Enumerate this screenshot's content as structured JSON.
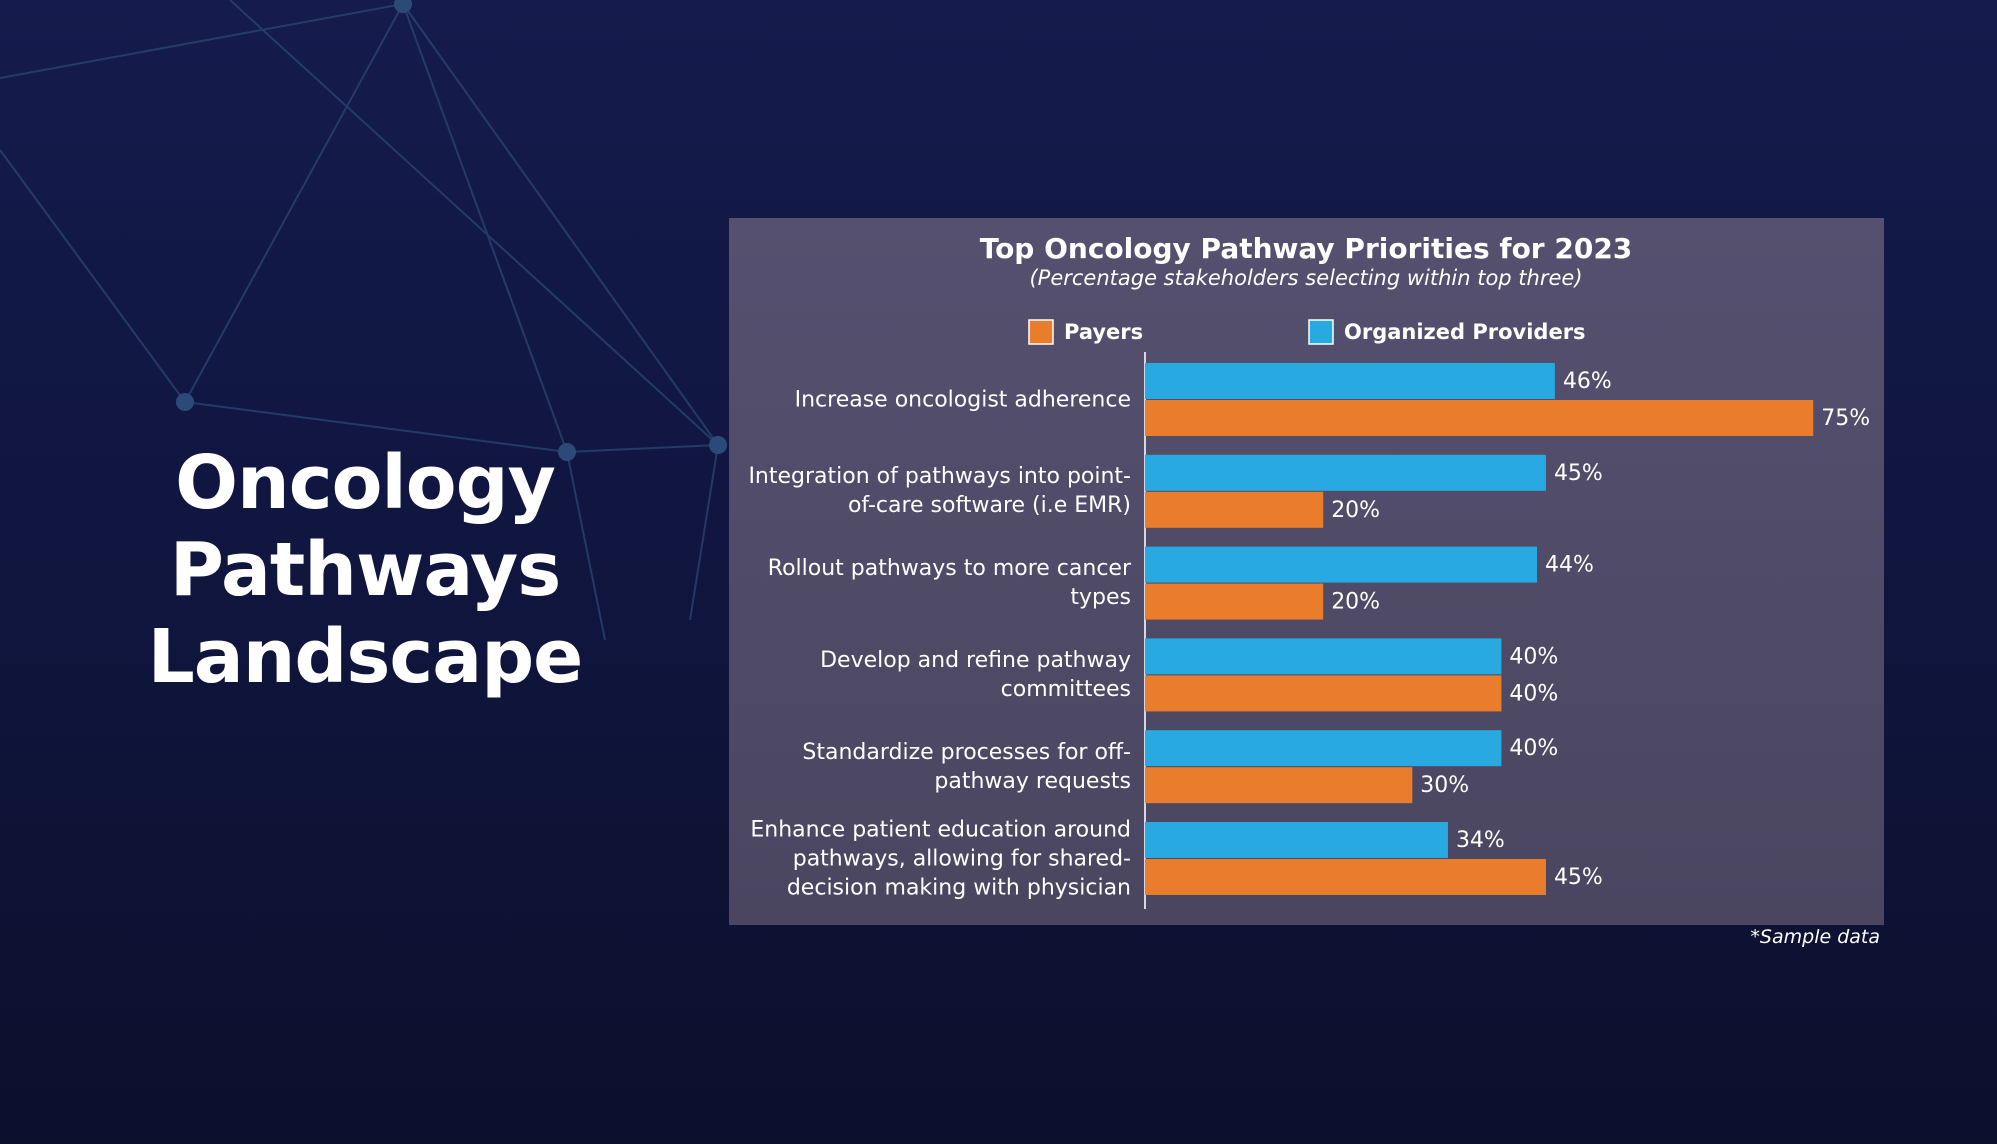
{
  "slide_title": "Oncology Pathways Landscape",
  "note": "*Sample data",
  "chart_data": {
    "type": "hbar",
    "title": "Top Oncology Pathway Priorities for 2023",
    "subtitle": "(Percentage stakeholders selecting within top three)",
    "categories": [
      "Increase oncologist adherence",
      "Integration of pathways into point-of-care software (i.e EMR)",
      "Rollout pathways to more cancer types",
      "Develop and refine pathway committees",
      "Standardize processes for off-pathway requests",
      "Enhance patient education around pathways, allowing for shared-decision making with physician"
    ],
    "series": [
      {
        "name": "Payers",
        "color": "#ea7d2b",
        "values": [
          75,
          20,
          20,
          40,
          30,
          45
        ],
        "value_labels": [
          "75%",
          "20%",
          "20%",
          "40%",
          "30%",
          "45%"
        ]
      },
      {
        "name": "Organized Providers",
        "color": "#29a9e1",
        "values": [
          46,
          45,
          44,
          40,
          40,
          34
        ],
        "value_labels": [
          "46%",
          "45%",
          "44%",
          "40%",
          "40%",
          "34%"
        ]
      }
    ],
    "xlim": [
      0,
      100
    ]
  }
}
